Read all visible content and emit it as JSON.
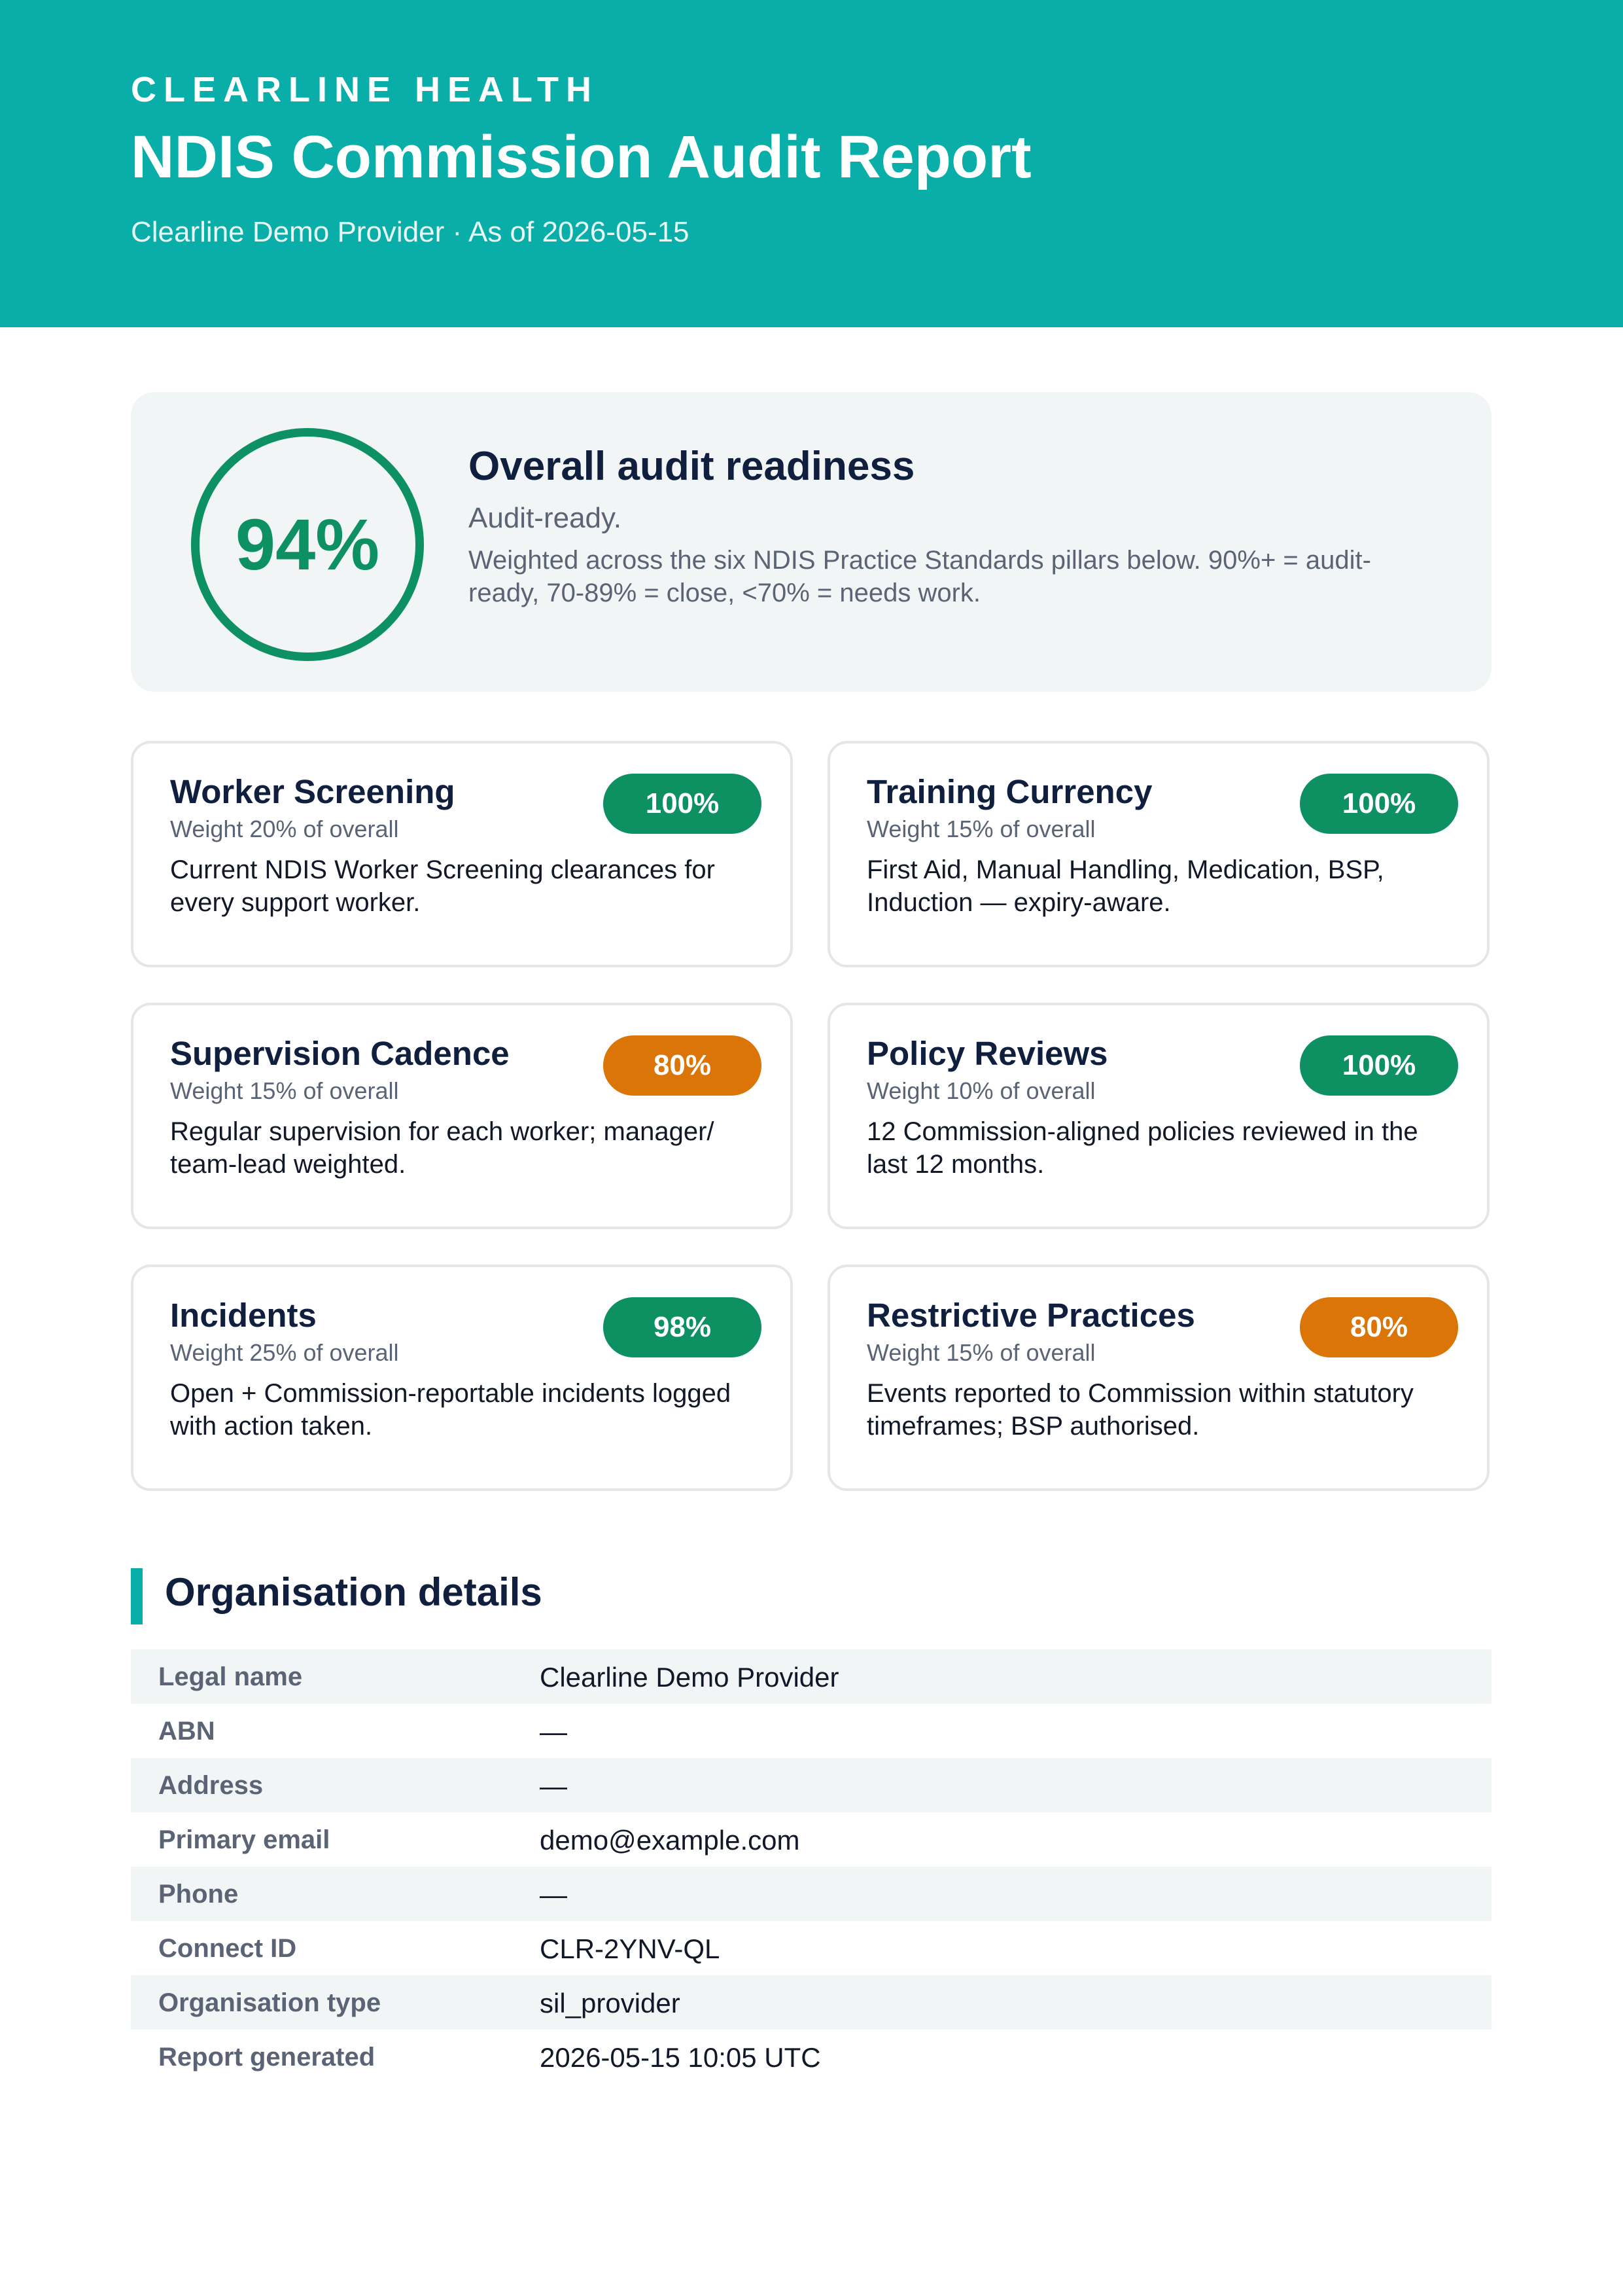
{
  "header": {
    "brand": "CLEARLINE HEALTH",
    "title": "NDIS Commission Audit Report",
    "subtitle": "Clearline Demo Provider · As of 2026-05-15"
  },
  "summary": {
    "score": "94%",
    "score_fraction": 0.94,
    "title": "Overall audit readiness",
    "status": "Audit-ready.",
    "description": "Weighted across the six NDIS Practice Standards pillars below. 90%+ = audit-ready, 70-89% = close, <70% = needs work."
  },
  "colors": {
    "brand": "#0aaea9",
    "ready": "#0d9163",
    "close": "#dc7508",
    "heading": "#0f1f3d",
    "muted": "#5b6475"
  },
  "pillars": [
    {
      "title": "Worker Screening",
      "weight": "Weight 20% of overall",
      "score": "100%",
      "status": "ready",
      "description": "Current NDIS Worker Screening clearances for every support worker."
    },
    {
      "title": "Training Currency",
      "weight": "Weight 15% of overall",
      "score": "100%",
      "status": "ready",
      "description": "First Aid, Manual Handling, Medication, BSP, Induction — expiry-aware."
    },
    {
      "title": "Supervision Cadence",
      "weight": "Weight 15% of overall",
      "score": "80%",
      "status": "close",
      "description": "Regular supervision for each worker; manager/ team-lead weighted."
    },
    {
      "title": "Policy Reviews",
      "weight": "Weight 10% of overall",
      "score": "100%",
      "status": "ready",
      "description": "12 Commission-aligned policies reviewed in the last 12 months."
    },
    {
      "title": "Incidents",
      "weight": "Weight 25% of overall",
      "score": "98%",
      "status": "ready",
      "description": "Open + Commission-reportable incidents logged with action taken."
    },
    {
      "title": "Restrictive Practices",
      "weight": "Weight 15% of overall",
      "score": "80%",
      "status": "close",
      "description": "Events reported to Commission within statutory timeframes; BSP authorised."
    }
  ],
  "organisation": {
    "section_title": "Organisation details",
    "rows": [
      {
        "label": "Legal name",
        "value": "Clearline Demo Provider"
      },
      {
        "label": "ABN",
        "value": "—"
      },
      {
        "label": "Address",
        "value": "—"
      },
      {
        "label": "Primary email",
        "value": "demo@example.com"
      },
      {
        "label": "Phone",
        "value": "—"
      },
      {
        "label": "Connect ID",
        "value": "CLR-2YNV-QL"
      },
      {
        "label": "Organisation type",
        "value": "sil_provider"
      },
      {
        "label": "Report generated",
        "value": "2026-05-15 10:05 UTC"
      }
    ]
  }
}
